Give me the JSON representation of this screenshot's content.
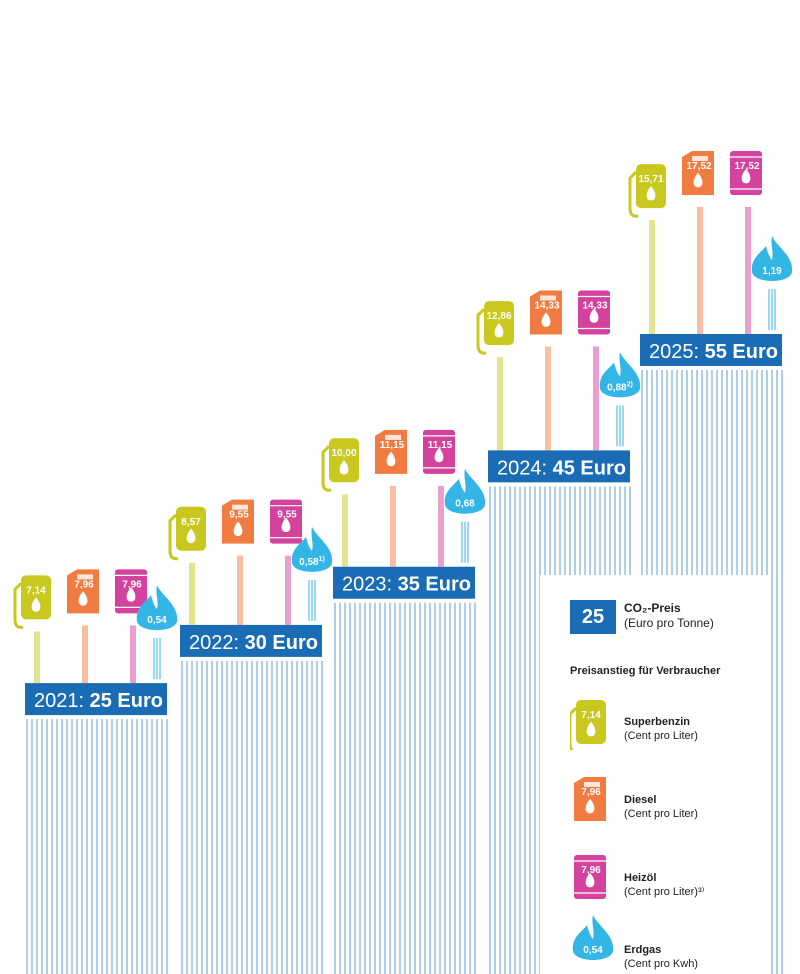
{
  "chart_data": {
    "type": "bar",
    "title": "",
    "categories": [
      "2021",
      "2022",
      "2023",
      "2024",
      "2025"
    ],
    "co2_price_labels": [
      "2021: 25 Euro",
      "2022: 30 Euro",
      "2023: 35 Euro",
      "2024: 45 Euro",
      "2025: 55 Euro"
    ],
    "co2_price_values": [
      25,
      30,
      35,
      45,
      55
    ],
    "series": [
      {
        "name": "Superbenzin",
        "unit": "(Cent pro Liter)",
        "color": "#c8c81e",
        "icon": "fuel-pump-icon",
        "labels": [
          "7,14",
          "8,57",
          "10,00",
          "12,86",
          "15,71"
        ],
        "values": [
          7.14,
          8.57,
          10.0,
          12.86,
          15.71
        ]
      },
      {
        "name": "Diesel",
        "unit": "(Cent pro Liter)",
        "color": "#f07c42",
        "icon": "jerrycan-icon",
        "labels": [
          "7,96",
          "9,55",
          "11,15",
          "14,33",
          "17,52"
        ],
        "values": [
          7.96,
          9.55,
          11.15,
          14.33,
          17.52
        ]
      },
      {
        "name": "Heizöl",
        "unit": "(Cent pro Liter)3)",
        "color": "#d3429c",
        "icon": "oil-barrel-icon",
        "labels": [
          "7,96",
          "9,55",
          "11,15",
          "14,33",
          "17,52"
        ],
        "values": [
          7.96,
          9.55,
          11.15,
          14.33,
          17.52
        ]
      },
      {
        "name": "Erdgas",
        "unit": "(Cent pro Kwh)",
        "color": "#33b5e5",
        "icon": "gas-flame-icon",
        "labels": [
          "0,54",
          "0,58",
          "0,68",
          "0,88",
          "1,19"
        ],
        "values": [
          0.54,
          0.58,
          0.68,
          0.88,
          1.19
        ],
        "footnotes": [
          "",
          "1)",
          "",
          "2)",
          ""
        ]
      }
    ],
    "colors": {
      "co2_label_bg": "#1a6db5",
      "bar_lines": "#5b9fd6"
    }
  },
  "legend": {
    "price_value": "25",
    "price_title": "CO₂-Preis",
    "price_unit": "(Euro pro Tonne)",
    "heading": "Preisanstieg für Verbraucher",
    "items": [
      {
        "title": "Superbenzin",
        "unit": "(Cent pro Liter)",
        "value": "7,14"
      },
      {
        "title": "Diesel",
        "unit": "(Cent pro Liter)",
        "value": "7,96"
      },
      {
        "title": "Heizöl",
        "unit": "(Cent pro Liter)³⁾",
        "value": "7,96"
      },
      {
        "title": "Erdgas",
        "unit": "(Cent pro Kwh)",
        "value": "0,54"
      }
    ]
  }
}
